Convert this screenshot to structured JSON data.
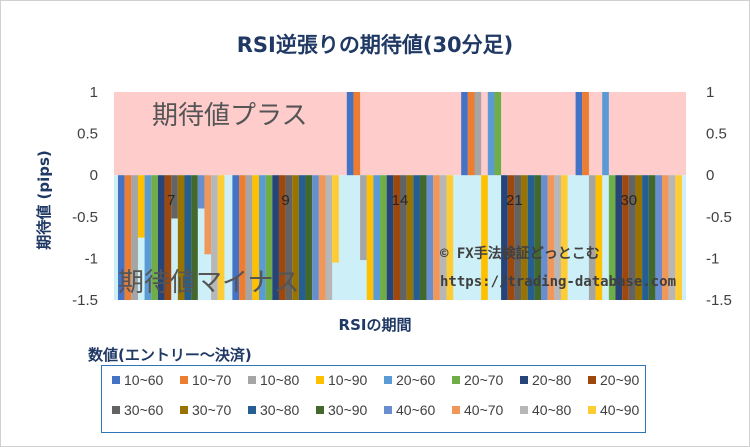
{
  "chart_data": {
    "type": "bar",
    "title": "RSI逆張りの期待値(30分足)",
    "xlabel": "RSIの期間",
    "ylabel": "期待値 (pips)",
    "ylim": [
      -1.5,
      1
    ],
    "yticks": [
      "1",
      "0.5",
      "0",
      "-0.5",
      "-1",
      "-1.5"
    ],
    "secondary_yticks": [
      "1",
      "0.5",
      "0",
      "-0.5",
      "-1",
      "-1.5"
    ],
    "grid": false,
    "legend_position": "bottom",
    "legend_title": "数値(エントリー～決済)",
    "categories": [
      "7",
      "9",
      "14",
      "21",
      "30"
    ],
    "regions": {
      "plus_label": "期待値プラス",
      "minus_label": "期待値マイナス",
      "plus_color": "#ffcccc",
      "minus_color": "#cceff8"
    },
    "series": [
      {
        "name": "10~60",
        "color": "#4472c4",
        "values": [
          -1.5,
          -1.5,
          1.0,
          1.0,
          1.0
        ]
      },
      {
        "name": "10~70",
        "color": "#ed7d31",
        "values": [
          -1.5,
          -1.5,
          1.0,
          1.0,
          1.0
        ]
      },
      {
        "name": "10~80",
        "color": "#a5a5a5",
        "values": [
          -1.5,
          -1.5,
          -1.02,
          1.0,
          -1.5
        ]
      },
      {
        "name": "10~90",
        "color": "#ffc000",
        "values": [
          -0.75,
          -1.5,
          -1.5,
          -1.5,
          -1.5
        ]
      },
      {
        "name": "20~60",
        "color": "#5b9bd5",
        "values": [
          -1.5,
          -1.5,
          -1.5,
          1.0,
          1.0
        ]
      },
      {
        "name": "20~70",
        "color": "#70ad47",
        "values": [
          -1.5,
          -1.5,
          -1.5,
          1.0,
          -1.5
        ]
      },
      {
        "name": "20~80",
        "color": "#264478",
        "values": [
          -1.5,
          -1.5,
          -1.5,
          -1.5,
          -1.5
        ]
      },
      {
        "name": "20~90",
        "color": "#9e480e",
        "values": [
          -1.5,
          -1.5,
          -1.5,
          -1.5,
          -1.5
        ]
      },
      {
        "name": "30~60",
        "color": "#636363",
        "values": [
          -0.52,
          -1.5,
          -1.5,
          -1.5,
          -1.5
        ]
      },
      {
        "name": "30~70",
        "color": "#997300",
        "values": [
          -1.5,
          -1.5,
          -1.5,
          -1.5,
          -1.5
        ]
      },
      {
        "name": "30~80",
        "color": "#255e91",
        "values": [
          -1.5,
          -1.5,
          -1.5,
          -1.5,
          -1.5
        ]
      },
      {
        "name": "30~90",
        "color": "#43682b",
        "values": [
          -1.5,
          -1.5,
          -1.5,
          -1.5,
          -1.5
        ]
      },
      {
        "name": "40~60",
        "color": "#698ed0",
        "values": [
          -0.4,
          -1.5,
          -1.5,
          -1.5,
          -1.5
        ]
      },
      {
        "name": "40~70",
        "color": "#f1975a",
        "values": [
          -0.95,
          -1.5,
          -1.5,
          -1.5,
          -1.5
        ]
      },
      {
        "name": "40~80",
        "color": "#b7b7b7",
        "values": [
          -1.5,
          -1.5,
          -1.5,
          -1.5,
          -1.5
        ]
      },
      {
        "name": "40~90",
        "color": "#ffcd33",
        "values": [
          -1.5,
          -1.05,
          -1.5,
          -1.5,
          -1.5
        ]
      }
    ]
  },
  "watermark": {
    "line1": "© FX手法検証どっとこむ",
    "line2": "https://trading-database.com"
  }
}
